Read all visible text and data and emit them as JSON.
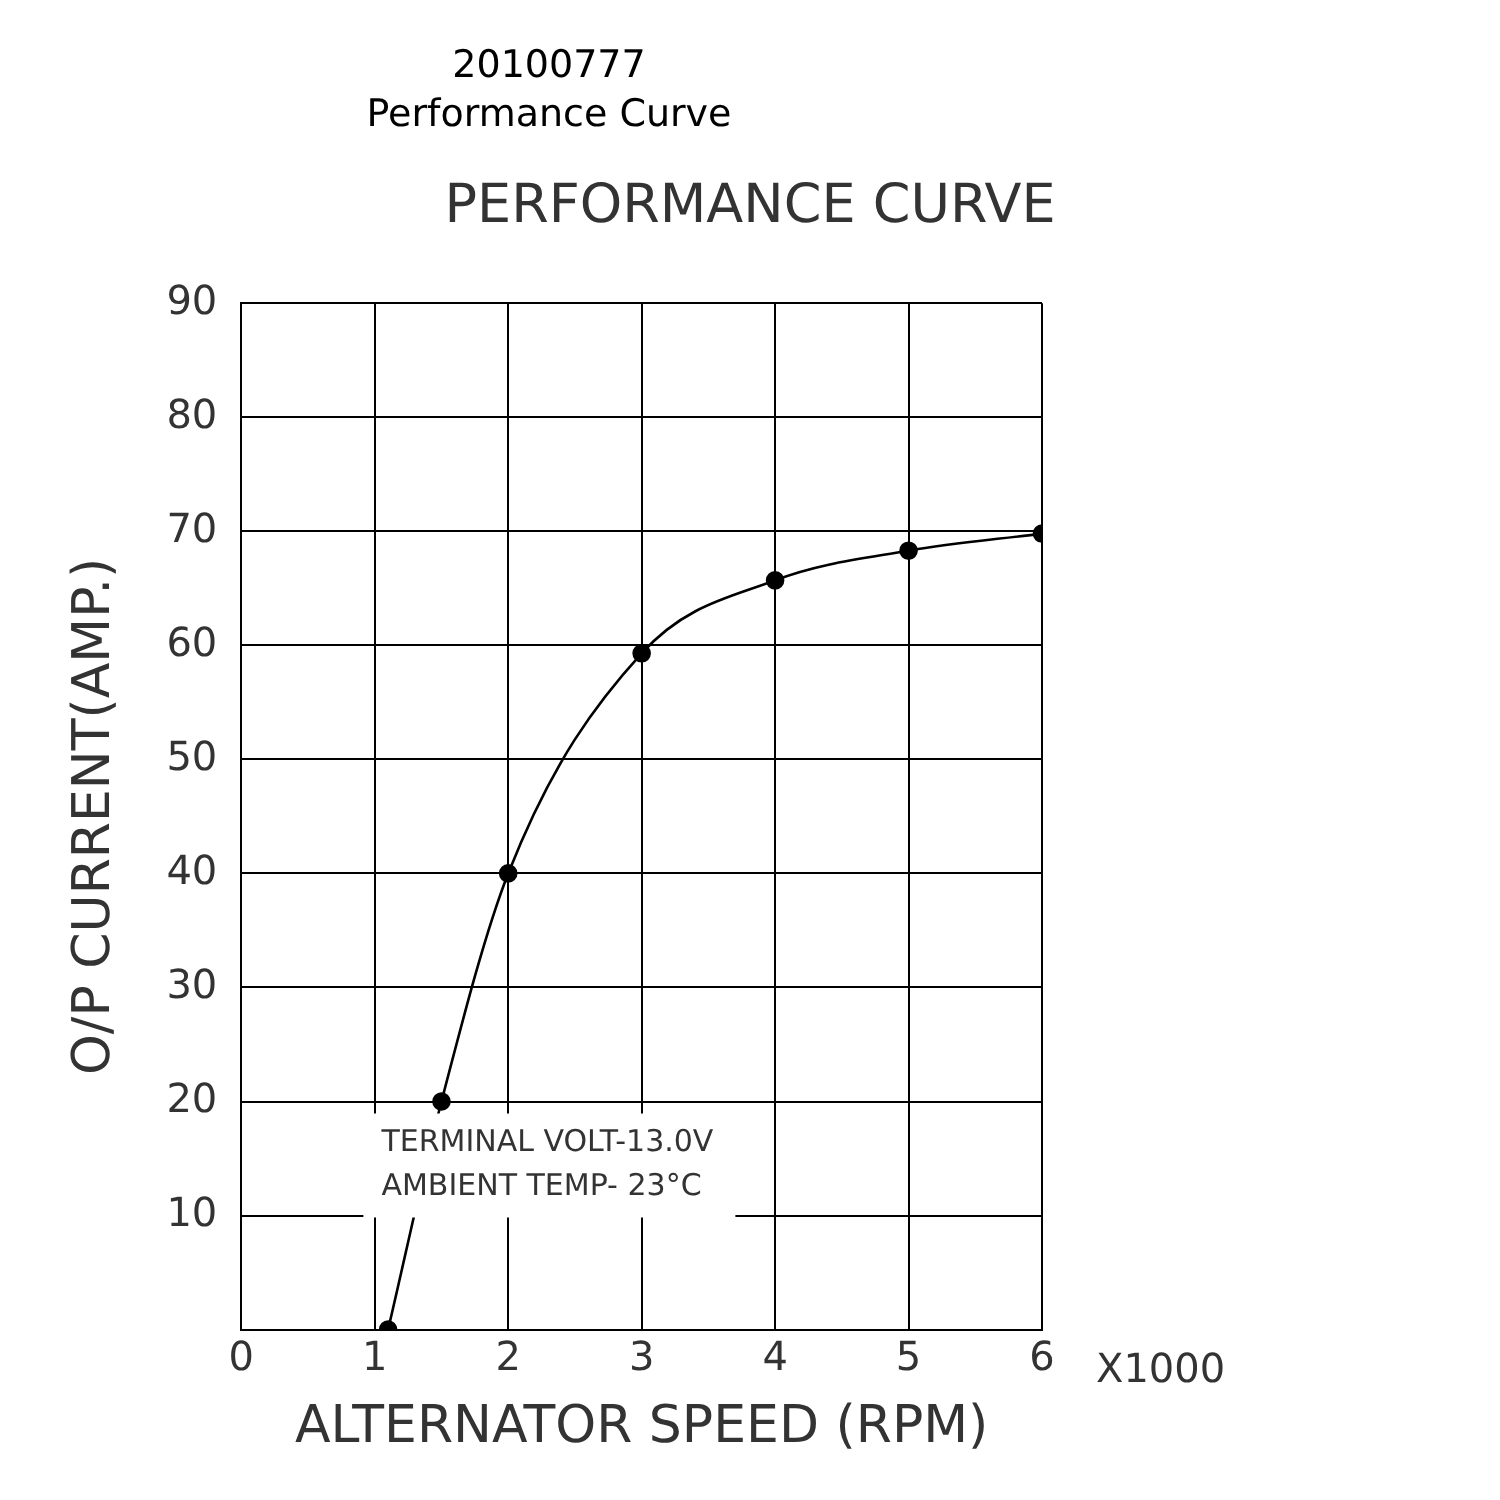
{
  "chart_data": {
    "type": "line",
    "title": "20100777",
    "subtitle": "Performance Curve",
    "xlabel": "ALTERNATOR SPEED (RPM)",
    "ylabel": "O/P CURRENT(AMP.)",
    "annotations": [
      "PERFORMANCE CURVE",
      "X1000",
      "TERMINAL VOLT-13.0V",
      "AMBIENT TEMP- 23°C"
    ],
    "x": [
      1.1,
      1.5,
      2,
      3,
      4,
      5,
      6
    ],
    "series": [
      {
        "color": "#000000",
        "values": [
          0,
          20,
          40,
          59.3,
          65.7,
          68.3,
          69.8
        ]
      }
    ],
    "xlim": [
      0,
      6
    ],
    "xticks": [
      0,
      1,
      2,
      3,
      4,
      5,
      6
    ],
    "ylim": [
      0,
      90
    ],
    "yticks": [
      {
        "value": 0,
        "label": null
      },
      10,
      20,
      30,
      40,
      50,
      60,
      70,
      80,
      90
    ],
    "grid": true,
    "legend": false,
    "marker": "circle",
    "line_style": "solid"
  }
}
